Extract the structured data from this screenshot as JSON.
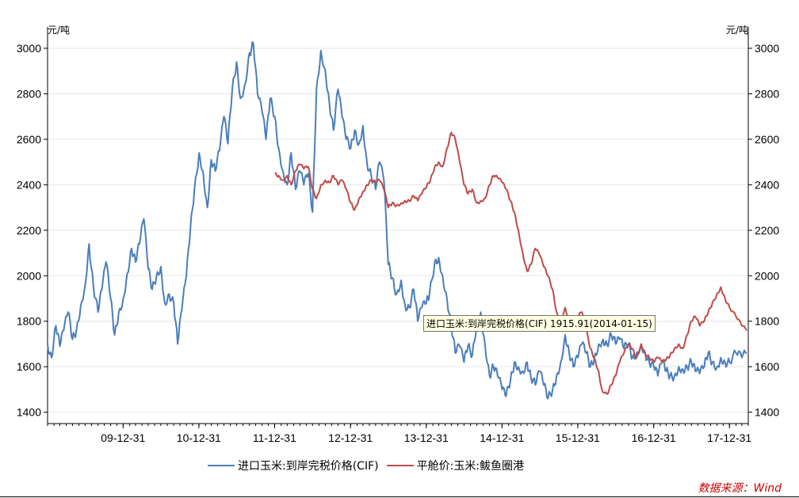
{
  "chart_data": {
    "type": "line",
    "left_unit": "元/吨",
    "right_unit": "元/吨",
    "ylim": [
      1350,
      3080
    ],
    "y_ticks": [
      1400,
      1600,
      1800,
      2000,
      2200,
      2400,
      2600,
      2800,
      3000
    ],
    "x_tick_labels": [
      "09-12-31",
      "10-12-31",
      "11-12-31",
      "12-12-31",
      "13-12-31",
      "14-12-31",
      "15-12-31",
      "16-12-31",
      "17-12-31"
    ],
    "xlim": [
      "2009-01-01",
      "2018-04-01"
    ],
    "grid": true,
    "legend_position": "bottom",
    "series": [
      {
        "name": "进口玉米:到岸完税价格(CIF)",
        "color": "#4a7ebb",
        "points": [
          [
            "2009-01-01",
            1700
          ],
          [
            "2009-01-20",
            1640
          ],
          [
            "2009-02-10",
            1780
          ],
          [
            "2009-03-01",
            1690
          ],
          [
            "2009-03-20",
            1760
          ],
          [
            "2009-04-10",
            1840
          ],
          [
            "2009-05-01",
            1720
          ],
          [
            "2009-05-20",
            1760
          ],
          [
            "2009-06-10",
            1870
          ],
          [
            "2009-07-01",
            1960
          ],
          [
            "2009-07-20",
            2140
          ],
          [
            "2009-08-10",
            1950
          ],
          [
            "2009-09-01",
            1840
          ],
          [
            "2009-09-20",
            1940
          ],
          [
            "2009-10-10",
            2060
          ],
          [
            "2009-11-01",
            1900
          ],
          [
            "2009-11-20",
            1740
          ],
          [
            "2009-12-10",
            1840
          ],
          [
            "2010-01-01",
            1900
          ],
          [
            "2010-01-20",
            2010
          ],
          [
            "2010-02-10",
            2120
          ],
          [
            "2010-03-01",
            2060
          ],
          [
            "2010-03-20",
            2140
          ],
          [
            "2010-04-10",
            2250
          ],
          [
            "2010-05-01",
            2030
          ],
          [
            "2010-05-20",
            1940
          ],
          [
            "2010-06-10",
            2000
          ],
          [
            "2010-07-01",
            2040
          ],
          [
            "2010-07-20",
            1880
          ],
          [
            "2010-08-10",
            1920
          ],
          [
            "2010-09-01",
            1880
          ],
          [
            "2010-09-20",
            1700
          ],
          [
            "2010-10-10",
            1850
          ],
          [
            "2010-11-01",
            2000
          ],
          [
            "2010-11-20",
            2200
          ],
          [
            "2010-12-10",
            2380
          ],
          [
            "2011-01-01",
            2540
          ],
          [
            "2011-01-20",
            2460
          ],
          [
            "2011-02-10",
            2300
          ],
          [
            "2011-03-01",
            2510
          ],
          [
            "2011-03-20",
            2460
          ],
          [
            "2011-04-10",
            2550
          ],
          [
            "2011-05-01",
            2700
          ],
          [
            "2011-05-20",
            2580
          ],
          [
            "2011-06-10",
            2820
          ],
          [
            "2011-07-01",
            2940
          ],
          [
            "2011-07-20",
            2780
          ],
          [
            "2011-08-10",
            2840
          ],
          [
            "2011-09-01",
            2980
          ],
          [
            "2011-09-20",
            3020
          ],
          [
            "2011-10-10",
            2800
          ],
          [
            "2011-11-01",
            2720
          ],
          [
            "2011-11-20",
            2600
          ],
          [
            "2011-12-10",
            2780
          ],
          [
            "2012-01-01",
            2700
          ],
          [
            "2012-01-20",
            2560
          ],
          [
            "2012-02-10",
            2460
          ],
          [
            "2012-03-01",
            2400
          ],
          [
            "2012-03-20",
            2540
          ],
          [
            "2012-04-10",
            2380
          ],
          [
            "2012-05-01",
            2460
          ],
          [
            "2012-05-20",
            2400
          ],
          [
            "2012-06-10",
            2450
          ],
          [
            "2012-07-01",
            2280
          ],
          [
            "2012-07-20",
            2820
          ],
          [
            "2012-08-10",
            2990
          ],
          [
            "2012-09-01",
            2900
          ],
          [
            "2012-09-20",
            2760
          ],
          [
            "2012-10-10",
            2640
          ],
          [
            "2012-11-01",
            2820
          ],
          [
            "2012-11-20",
            2700
          ],
          [
            "2012-12-10",
            2600
          ],
          [
            "2013-01-01",
            2560
          ],
          [
            "2013-01-20",
            2640
          ],
          [
            "2013-02-10",
            2580
          ],
          [
            "2013-03-01",
            2660
          ],
          [
            "2013-03-20",
            2500
          ],
          [
            "2013-04-10",
            2440
          ],
          [
            "2013-05-01",
            2380
          ],
          [
            "2013-05-20",
            2500
          ],
          [
            "2013-06-10",
            2420
          ],
          [
            "2013-07-01",
            2050
          ],
          [
            "2013-07-20",
            1990
          ],
          [
            "2013-08-10",
            1920
          ],
          [
            "2013-09-01",
            1980
          ],
          [
            "2013-09-20",
            1870
          ],
          [
            "2013-10-10",
            1860
          ],
          [
            "2013-11-01",
            1940
          ],
          [
            "2013-11-20",
            1800
          ],
          [
            "2013-12-10",
            1860
          ],
          [
            "2014-01-01",
            1880
          ],
          [
            "2014-01-15",
            1916
          ],
          [
            "2014-02-10",
            2060
          ],
          [
            "2014-03-01",
            2080
          ],
          [
            "2014-03-20",
            2000
          ],
          [
            "2014-04-10",
            1900
          ],
          [
            "2014-05-01",
            1780
          ],
          [
            "2014-05-20",
            1660
          ],
          [
            "2014-06-10",
            1690
          ],
          [
            "2014-07-01",
            1620
          ],
          [
            "2014-07-20",
            1690
          ],
          [
            "2014-08-10",
            1650
          ],
          [
            "2014-09-01",
            1800
          ],
          [
            "2014-09-20",
            1840
          ],
          [
            "2014-10-10",
            1700
          ],
          [
            "2014-11-01",
            1560
          ],
          [
            "2014-11-20",
            1600
          ],
          [
            "2014-12-10",
            1560
          ],
          [
            "2015-01-01",
            1500
          ],
          [
            "2015-01-20",
            1470
          ],
          [
            "2015-02-10",
            1540
          ],
          [
            "2015-03-01",
            1620
          ],
          [
            "2015-03-20",
            1600
          ],
          [
            "2015-04-10",
            1580
          ],
          [
            "2015-05-01",
            1620
          ],
          [
            "2015-05-20",
            1550
          ],
          [
            "2015-06-10",
            1520
          ],
          [
            "2015-07-01",
            1580
          ],
          [
            "2015-07-20",
            1520
          ],
          [
            "2015-08-10",
            1460
          ],
          [
            "2015-09-01",
            1500
          ],
          [
            "2015-09-20",
            1560
          ],
          [
            "2015-10-10",
            1620
          ],
          [
            "2015-11-01",
            1740
          ],
          [
            "2015-11-20",
            1660
          ],
          [
            "2015-12-10",
            1600
          ],
          [
            "2016-01-01",
            1640
          ],
          [
            "2016-01-20",
            1700
          ],
          [
            "2016-02-10",
            1660
          ],
          [
            "2016-03-01",
            1600
          ],
          [
            "2016-03-20",
            1640
          ],
          [
            "2016-04-10",
            1700
          ],
          [
            "2016-05-01",
            1720
          ],
          [
            "2016-05-20",
            1700
          ],
          [
            "2016-06-10",
            1740
          ],
          [
            "2016-07-01",
            1700
          ],
          [
            "2016-07-20",
            1720
          ],
          [
            "2016-08-10",
            1680
          ],
          [
            "2016-09-01",
            1700
          ],
          [
            "2016-09-20",
            1640
          ],
          [
            "2016-10-10",
            1660
          ],
          [
            "2016-11-01",
            1700
          ],
          [
            "2016-11-20",
            1660
          ],
          [
            "2016-12-10",
            1620
          ],
          [
            "2017-01-01",
            1600
          ],
          [
            "2017-01-20",
            1560
          ],
          [
            "2017-02-10",
            1620
          ],
          [
            "2017-03-01",
            1580
          ],
          [
            "2017-03-20",
            1560
          ],
          [
            "2017-04-10",
            1560
          ],
          [
            "2017-05-01",
            1600
          ],
          [
            "2017-05-20",
            1590
          ],
          [
            "2017-06-10",
            1600
          ],
          [
            "2017-07-01",
            1620
          ],
          [
            "2017-07-20",
            1580
          ],
          [
            "2017-08-10",
            1570
          ],
          [
            "2017-09-01",
            1600
          ],
          [
            "2017-09-20",
            1660
          ],
          [
            "2017-10-10",
            1620
          ],
          [
            "2017-11-01",
            1600
          ],
          [
            "2017-11-20",
            1640
          ],
          [
            "2017-12-10",
            1620
          ],
          [
            "2018-01-01",
            1620
          ],
          [
            "2018-02-01",
            1660
          ],
          [
            "2018-03-01",
            1640
          ],
          [
            "2018-03-25",
            1660
          ]
        ]
      },
      {
        "name": "平舱价:玉米:鲅鱼圈港",
        "color": "#be4b48",
        "points": [
          [
            "2012-01-01",
            2450
          ],
          [
            "2012-01-20",
            2440
          ],
          [
            "2012-02-10",
            2420
          ],
          [
            "2012-03-01",
            2440
          ],
          [
            "2012-03-20",
            2400
          ],
          [
            "2012-04-10",
            2460
          ],
          [
            "2012-05-01",
            2490
          ],
          [
            "2012-05-20",
            2470
          ],
          [
            "2012-06-10",
            2480
          ],
          [
            "2012-07-01",
            2380
          ],
          [
            "2012-07-20",
            2340
          ],
          [
            "2012-08-10",
            2400
          ],
          [
            "2012-09-01",
            2420
          ],
          [
            "2012-09-20",
            2410
          ],
          [
            "2012-10-10",
            2440
          ],
          [
            "2012-11-01",
            2400
          ],
          [
            "2012-11-20",
            2420
          ],
          [
            "2012-12-10",
            2380
          ],
          [
            "2013-01-01",
            2320
          ],
          [
            "2013-01-20",
            2290
          ],
          [
            "2013-02-10",
            2340
          ],
          [
            "2013-03-01",
            2370
          ],
          [
            "2013-03-20",
            2400
          ],
          [
            "2013-04-10",
            2420
          ],
          [
            "2013-05-01",
            2410
          ],
          [
            "2013-05-20",
            2420
          ],
          [
            "2013-06-10",
            2380
          ],
          [
            "2013-07-01",
            2300
          ],
          [
            "2013-07-20",
            2320
          ],
          [
            "2013-08-10",
            2310
          ],
          [
            "2013-09-01",
            2320
          ],
          [
            "2013-09-20",
            2330
          ],
          [
            "2013-10-10",
            2330
          ],
          [
            "2013-11-01",
            2350
          ],
          [
            "2013-11-20",
            2330
          ],
          [
            "2013-12-10",
            2360
          ],
          [
            "2014-01-01",
            2390
          ],
          [
            "2014-01-20",
            2420
          ],
          [
            "2014-02-10",
            2480
          ],
          [
            "2014-03-01",
            2500
          ],
          [
            "2014-03-20",
            2480
          ],
          [
            "2014-04-10",
            2560
          ],
          [
            "2014-05-01",
            2630
          ],
          [
            "2014-05-20",
            2600
          ],
          [
            "2014-06-10",
            2500
          ],
          [
            "2014-07-01",
            2400
          ],
          [
            "2014-07-20",
            2360
          ],
          [
            "2014-08-10",
            2380
          ],
          [
            "2014-09-01",
            2320
          ],
          [
            "2014-09-20",
            2330
          ],
          [
            "2014-10-10",
            2340
          ],
          [
            "2014-11-01",
            2400
          ],
          [
            "2014-11-20",
            2440
          ],
          [
            "2014-12-10",
            2430
          ],
          [
            "2015-01-01",
            2410
          ],
          [
            "2015-01-20",
            2380
          ],
          [
            "2015-02-10",
            2330
          ],
          [
            "2015-03-01",
            2280
          ],
          [
            "2015-03-20",
            2200
          ],
          [
            "2015-04-10",
            2100
          ],
          [
            "2015-05-01",
            2020
          ],
          [
            "2015-05-20",
            2050
          ],
          [
            "2015-06-10",
            2120
          ],
          [
            "2015-07-01",
            2090
          ],
          [
            "2015-07-20",
            2040
          ],
          [
            "2015-08-10",
            2000
          ],
          [
            "2015-09-01",
            1940
          ],
          [
            "2015-09-20",
            1840
          ],
          [
            "2015-10-10",
            1800
          ],
          [
            "2015-11-01",
            1860
          ],
          [
            "2015-11-20",
            1800
          ],
          [
            "2015-12-10",
            1780
          ],
          [
            "2016-01-01",
            1820
          ],
          [
            "2016-01-20",
            1840
          ],
          [
            "2016-02-10",
            1760
          ],
          [
            "2016-03-01",
            1680
          ],
          [
            "2016-03-20",
            1640
          ],
          [
            "2016-04-10",
            1580
          ],
          [
            "2016-04-25",
            1500
          ],
          [
            "2016-05-20",
            1480
          ],
          [
            "2016-06-10",
            1520
          ],
          [
            "2016-07-01",
            1560
          ],
          [
            "2016-07-20",
            1620
          ],
          [
            "2016-08-10",
            1660
          ],
          [
            "2016-09-01",
            1700
          ],
          [
            "2016-09-20",
            1680
          ],
          [
            "2016-10-10",
            1640
          ],
          [
            "2016-11-01",
            1700
          ],
          [
            "2016-11-20",
            1660
          ],
          [
            "2016-12-10",
            1640
          ],
          [
            "2017-01-01",
            1620
          ],
          [
            "2017-01-20",
            1640
          ],
          [
            "2017-02-10",
            1620
          ],
          [
            "2017-03-01",
            1630
          ],
          [
            "2017-03-20",
            1650
          ],
          [
            "2017-04-10",
            1680
          ],
          [
            "2017-05-01",
            1700
          ],
          [
            "2017-05-20",
            1680
          ],
          [
            "2017-06-10",
            1740
          ],
          [
            "2017-07-01",
            1800
          ],
          [
            "2017-07-20",
            1820
          ],
          [
            "2017-08-10",
            1780
          ],
          [
            "2017-09-01",
            1800
          ],
          [
            "2017-09-20",
            1840
          ],
          [
            "2017-10-10",
            1880
          ],
          [
            "2017-11-01",
            1920
          ],
          [
            "2017-11-20",
            1950
          ],
          [
            "2017-12-10",
            1900
          ],
          [
            "2018-01-01",
            1860
          ],
          [
            "2018-02-01",
            1820
          ],
          [
            "2018-03-01",
            1780
          ],
          [
            "2018-03-25",
            1760
          ]
        ]
      }
    ],
    "tooltip": "进口玉米:到岸完税价格(CIF) 1915.91(2014-01-15)"
  },
  "source_text": "数据来源：Wind"
}
